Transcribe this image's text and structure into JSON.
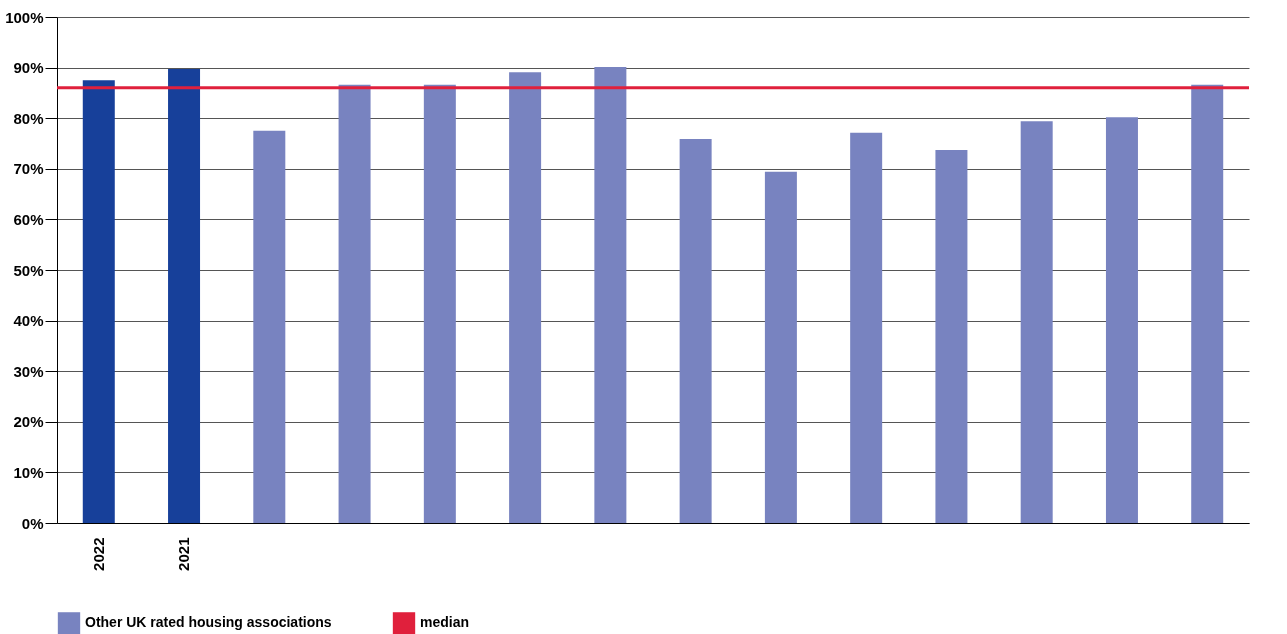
{
  "chart_data": {
    "type": "bar",
    "categories": [
      "2022",
      "2021",
      null,
      null,
      null,
      null,
      null,
      null,
      null,
      null,
      null,
      null,
      null,
      null
    ],
    "series": [
      {
        "color": "#17409a",
        "values": [
          87.5,
          89.7,
          null,
          null,
          null,
          null,
          null,
          null,
          null,
          null,
          null,
          null,
          null,
          null
        ]
      },
      {
        "name": "Other UK rated housing associations",
        "color": "#7883c0",
        "values": [
          null,
          null,
          77.5,
          86.6,
          86.6,
          89.1,
          90.1,
          75.9,
          69.4,
          77.1,
          73.7,
          79.4,
          80.2,
          86.6
        ]
      }
    ],
    "ylim": [
      0,
      100
    ],
    "yticks": [
      {
        "value": 0,
        "label": "0%"
      },
      {
        "value": 10,
        "label": "10%"
      },
      {
        "value": 20,
        "label": "20%"
      },
      {
        "value": 30,
        "label": "30%"
      },
      {
        "value": 40,
        "label": "40%"
      },
      {
        "value": 50,
        "label": "50%"
      },
      {
        "value": 60,
        "label": "60%"
      },
      {
        "value": 70,
        "label": "70%"
      },
      {
        "value": 80,
        "label": "80%"
      },
      {
        "value": 90,
        "label": "90%"
      },
      {
        "value": 100,
        "label": "100%"
      }
    ],
    "ref_lines": [
      {
        "axis": "y",
        "value": 86,
        "label": "median",
        "color": "#e0203c"
      }
    ],
    "grid": "y",
    "legend": "bottom"
  }
}
